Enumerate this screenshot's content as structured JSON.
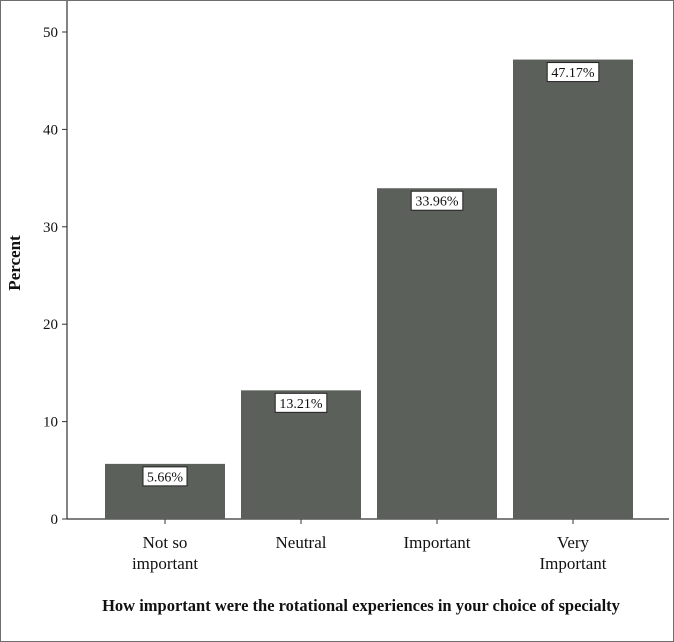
{
  "chart_data": {
    "type": "bar",
    "categories": [
      [
        "Not so",
        "important"
      ],
      [
        "Neutral"
      ],
      [
        "Important"
      ],
      [
        "Very",
        "Important"
      ]
    ],
    "values": [
      5.66,
      13.21,
      33.96,
      47.17
    ],
    "data_labels": [
      "5.66%",
      "13.21%",
      "33.96%",
      "47.17%"
    ],
    "xlabel": "How important were the rotational experiences in your choice of specialty",
    "ylabel": "Percent",
    "ylim": [
      0,
      50
    ],
    "yticks": [
      0,
      10,
      20,
      30,
      40,
      50
    ],
    "grid": false,
    "bar_color": "#5c605b"
  }
}
